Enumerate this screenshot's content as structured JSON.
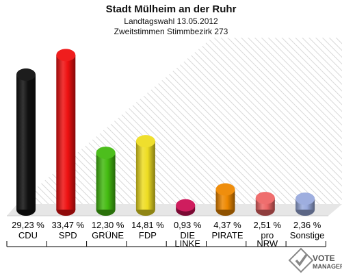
{
  "chart_data": {
    "type": "bar",
    "title": "Stadt Mülheim an der Ruhr",
    "subtitle_lines": [
      "Landtagswahl 13.05.2012",
      "Zweitstimmen Stimmbezirk 273"
    ],
    "categories": [
      {
        "lines": [
          "CDU"
        ]
      },
      {
        "lines": [
          "SPD"
        ]
      },
      {
        "lines": [
          "GRÜNE"
        ]
      },
      {
        "lines": [
          "FDP"
        ]
      },
      {
        "lines": [
          "DIE",
          "LINKE"
        ]
      },
      {
        "lines": [
          "PIRATE"
        ]
      },
      {
        "lines": [
          "pro",
          "NRW"
        ]
      },
      {
        "lines": [
          "Sonstige"
        ]
      }
    ],
    "values": [
      29.23,
      33.47,
      12.3,
      14.81,
      0.93,
      4.37,
      2.51,
      2.36
    ],
    "value_labels": [
      "29,23 %",
      "33,47 %",
      "12,30 %",
      "14,81 %",
      "0,93 %",
      "4,37 %",
      "2,51 %",
      "2,36 %"
    ],
    "colors": [
      "#111111",
      "#ee1111",
      "#44bb11",
      "#eedd22",
      "#cc1155",
      "#ee8800",
      "#ee6666",
      "#99aadd"
    ],
    "ylim": [
      0,
      35
    ],
    "grid": false,
    "legend": "none"
  },
  "logo": {
    "line1": "VOTE",
    "line2": "MANAGER"
  }
}
